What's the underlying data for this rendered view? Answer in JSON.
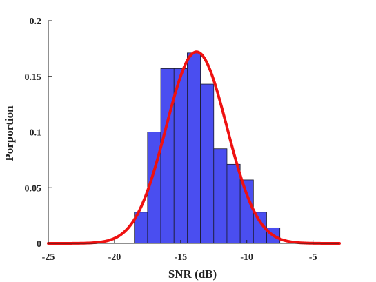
{
  "chart_data": {
    "type": "bar",
    "subtype": "histogram-with-fitted-curve",
    "xlabel": "SNR (dB)",
    "ylabel": "Porportion",
    "xlim": [
      -25,
      -3
    ],
    "ylim": [
      0,
      0.2
    ],
    "xticks": [
      -25,
      -20,
      -15,
      -10,
      -5
    ],
    "yticks": [
      0,
      0.05,
      0.1,
      0.15,
      0.2
    ],
    "xtick_labels": [
      "-25",
      "-20",
      "-15",
      "-10",
      "-5"
    ],
    "ytick_labels": [
      "0",
      "0.05",
      "0.1",
      "0.15",
      "0.2"
    ],
    "grid": false,
    "bins": [
      {
        "x0": -18.5,
        "x1": -17.5,
        "value": 0.028
      },
      {
        "x0": -17.5,
        "x1": -16.5,
        "value": 0.1
      },
      {
        "x0": -16.5,
        "x1": -15.5,
        "value": 0.157
      },
      {
        "x0": -15.5,
        "x1": -14.5,
        "value": 0.157
      },
      {
        "x0": -14.5,
        "x1": -13.5,
        "value": 0.171
      },
      {
        "x0": -13.5,
        "x1": -12.5,
        "value": 0.143
      },
      {
        "x0": -12.5,
        "x1": -11.5,
        "value": 0.085
      },
      {
        "x0": -11.5,
        "x1": -10.5,
        "value": 0.071
      },
      {
        "x0": -10.5,
        "x1": -9.5,
        "value": 0.057
      },
      {
        "x0": -9.5,
        "x1": -8.5,
        "value": 0.028
      },
      {
        "x0": -8.5,
        "x1": -7.5,
        "value": 0.014
      }
    ],
    "fit_curve": {
      "type": "normal",
      "mean": -13.8,
      "std": 2.3,
      "peak": 0.172
    },
    "colors": {
      "bars": "#4a4ef0",
      "bar_edge": "#1a1a2e",
      "curve": "#ee1111",
      "axis": "#222222"
    }
  }
}
